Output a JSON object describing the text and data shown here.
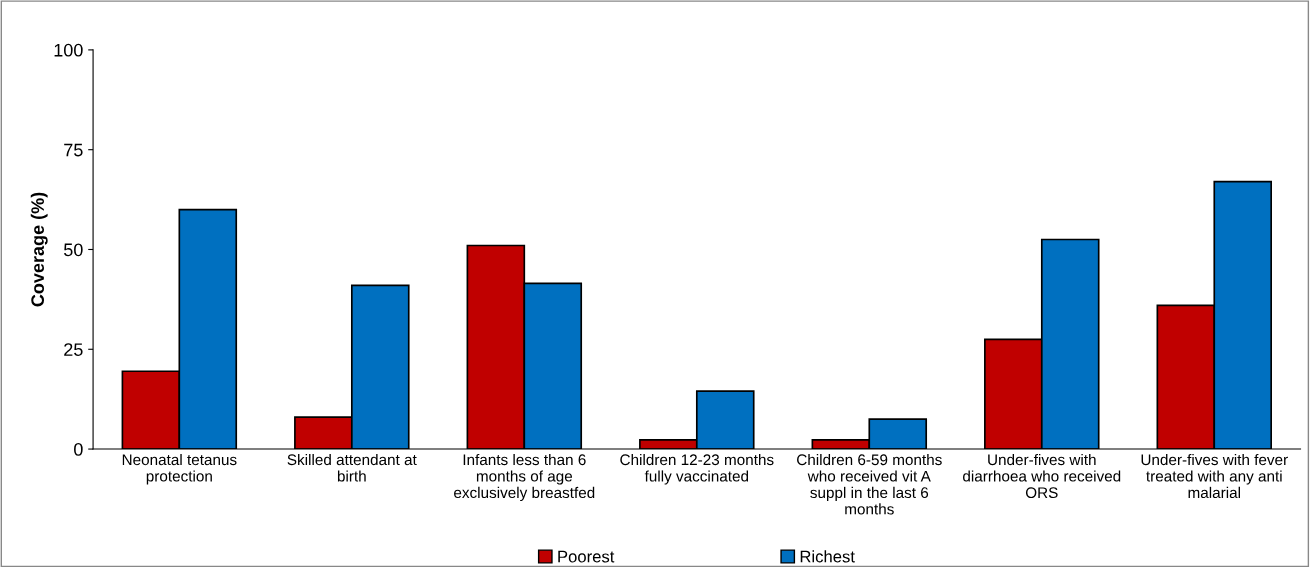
{
  "chart_data": {
    "type": "bar",
    "ylabel": "Coverage (%)",
    "categories": [
      "Neonatal tetanus protection",
      "Skilled attendant at birth",
      "Infants less than 6 months of age exclusively breastfed",
      "Children 12-23 months fully vaccinated",
      "Children 6-59 months who received vit A suppl in the last 6 months",
      "Under-fives with diarrhoea who received ORS",
      "Under-fives with fever treated with any anti malarial"
    ],
    "series": [
      {
        "name": "Poorest",
        "color": "#c00000",
        "values": [
          19.5,
          8,
          51,
          2.3,
          2.3,
          27.5,
          36
        ]
      },
      {
        "name": "Richest",
        "color": "#0070c0",
        "values": [
          60,
          41,
          41.5,
          14.5,
          7.5,
          52.5,
          67
        ]
      }
    ],
    "ylim": [
      0,
      100
    ],
    "yticks": [
      0,
      25,
      50,
      75,
      100
    ],
    "grid": false,
    "legend": "bottom"
  }
}
